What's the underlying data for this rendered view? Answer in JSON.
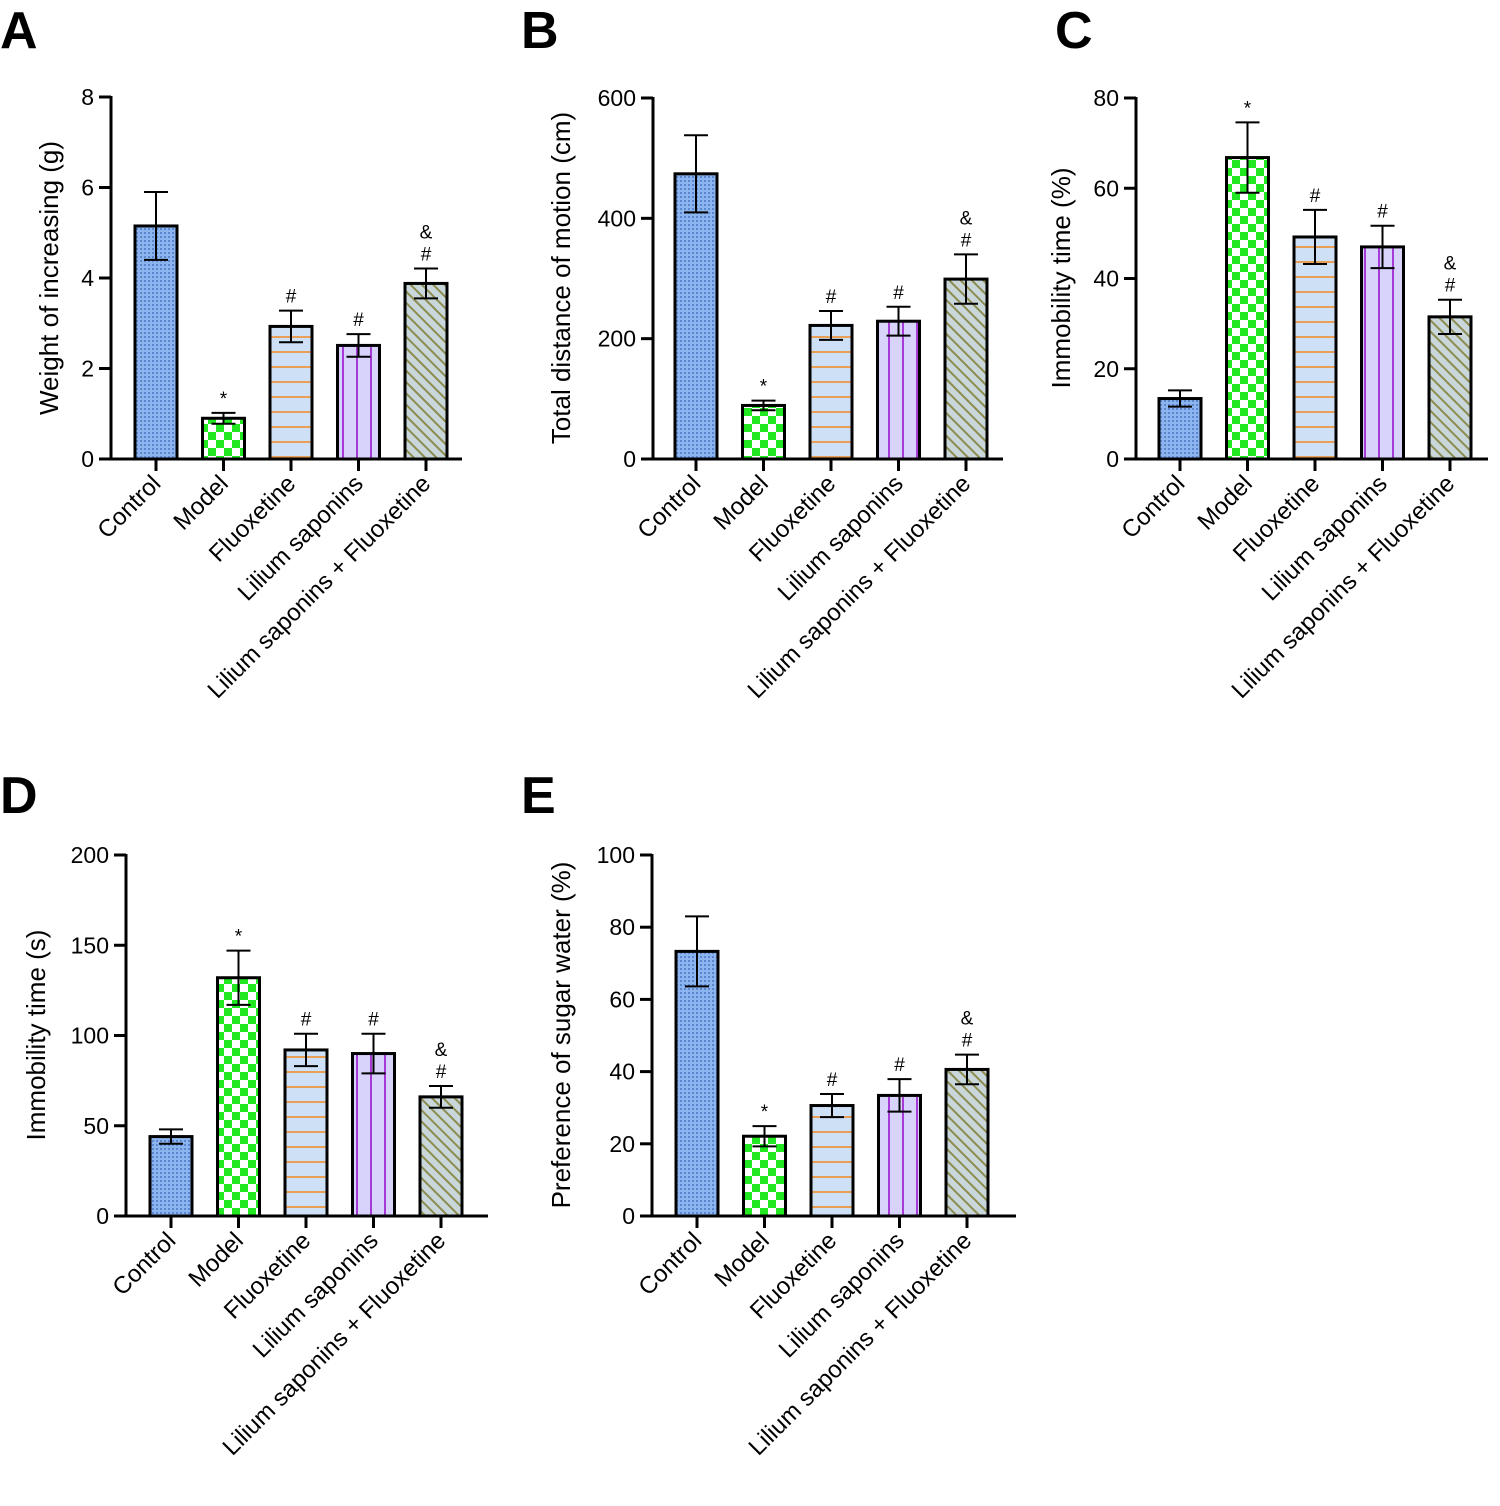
{
  "figure": {
    "colors": {
      "control_fill": "#8cb4ee",
      "control_dot": "#5b87cf",
      "model_light": "#ffffff",
      "model_check": "#22e822",
      "fluoxetine_fill": "#cde0f6",
      "fluoxetine_line": "#e8a058",
      "lilium_fill": "#d7d3fb",
      "lilium_line": "#a63ad6",
      "combo_fill": "#c9d7da",
      "combo_line": "#8c8c50"
    }
  },
  "chart_data": [
    {
      "panel": "A",
      "type": "bar",
      "ylabel": "Weight of increasing (g)",
      "ylim": [
        0,
        8
      ],
      "yticks": [
        0,
        2,
        4,
        6,
        8
      ],
      "categories": [
        "Control",
        "Model",
        "Fluoxetine",
        "Lilium saponins",
        "Lilium saponins + Fluoxetine"
      ],
      "values": [
        5.15,
        0.9,
        2.93,
        2.51,
        3.88
      ],
      "errors": [
        0.75,
        0.12,
        0.35,
        0.25,
        0.33
      ],
      "significance": [
        "",
        "*",
        "#",
        "#",
        "&\n#"
      ]
    },
    {
      "panel": "B",
      "type": "bar",
      "ylabel": "Total distance of motion (cm)",
      "ylim": [
        0,
        600
      ],
      "yticks": [
        0,
        200,
        400,
        600
      ],
      "categories": [
        "Control",
        "Model",
        "Fluoxetine",
        "Lilium saponins",
        "Lilium saponins + Fluoxetine"
      ],
      "values": [
        474,
        89,
        222,
        229,
        299
      ],
      "errors": [
        64,
        8,
        24,
        24,
        41
      ],
      "significance": [
        "",
        "*",
        "#",
        "#",
        "&\n#"
      ]
    },
    {
      "panel": "C",
      "type": "bar",
      "ylabel": "Immobility time (%)",
      "ylim": [
        0,
        80
      ],
      "yticks": [
        0,
        20,
        40,
        60,
        80
      ],
      "categories": [
        "Control",
        "Model",
        "Fluoxetine",
        "Lilium saponins",
        "Lilium saponins + Fluoxetine"
      ],
      "values": [
        13.4,
        66.8,
        49.2,
        47.0,
        31.5
      ],
      "errors": [
        1.8,
        7.8,
        6.0,
        4.7,
        3.8
      ],
      "significance": [
        "",
        "*",
        "#",
        "#",
        "&\n#"
      ]
    },
    {
      "panel": "D",
      "type": "bar",
      "ylabel": "Immobility time (s)",
      "ylim": [
        0,
        200
      ],
      "yticks": [
        0,
        50,
        100,
        150,
        200
      ],
      "categories": [
        "Control",
        "Model",
        "Fluoxetine",
        "Lilium saponins",
        "Lilium saponins + Fluoxetine"
      ],
      "values": [
        44,
        132,
        92,
        90,
        66
      ],
      "errors": [
        4,
        15,
        9,
        11,
        6
      ],
      "significance": [
        "",
        "*",
        "#",
        "#",
        "&\n#"
      ]
    },
    {
      "panel": "E",
      "type": "bar",
      "ylabel": "Preference of sugar water (%)",
      "ylim": [
        0,
        100
      ],
      "yticks": [
        0,
        20,
        40,
        60,
        80,
        100
      ],
      "categories": [
        "Control",
        "Model",
        "Fluoxetine",
        "Lilium saponins",
        "Lilium saponins + Fluoxetine"
      ],
      "values": [
        73.3,
        22.1,
        30.6,
        33.4,
        40.6
      ],
      "errors": [
        9.7,
        2.8,
        3.2,
        4.5,
        4.1
      ],
      "significance": [
        "",
        "*",
        "#",
        "#",
        "&\n#"
      ]
    }
  ]
}
